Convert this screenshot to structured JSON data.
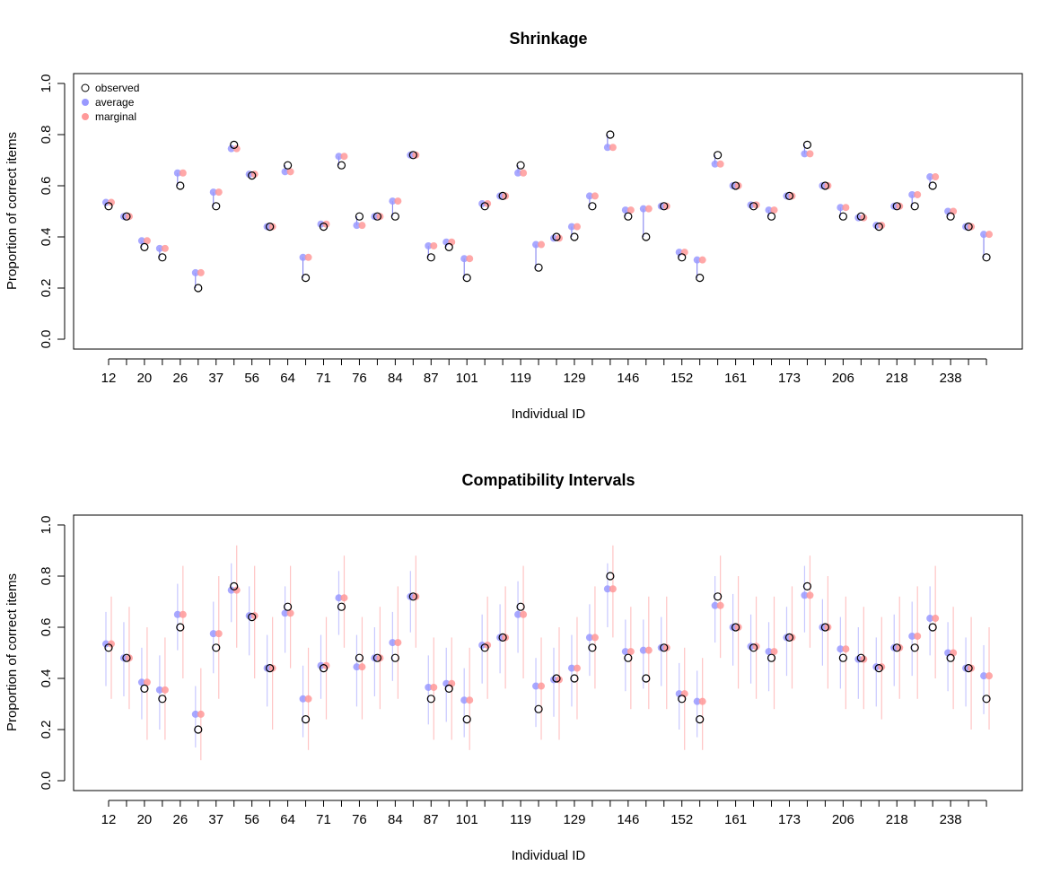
{
  "chart_data": [
    {
      "type": "scatter",
      "title": "Shrinkage",
      "xlabel": "Individual ID",
      "ylabel": "Proportion of correct items",
      "ylim": [
        0,
        1
      ],
      "yticks": [
        "0.0",
        "0.2",
        "0.4",
        "0.6",
        "0.8",
        "1.0"
      ],
      "show_intervals": false,
      "legend": {
        "placement": "top-left",
        "entries": [
          {
            "label": "observed",
            "marker": "open-circle",
            "color": "#000000"
          },
          {
            "label": "average",
            "marker": "filled-circle",
            "color": "#9999FF"
          },
          {
            "label": "marginal",
            "marker": "filled-circle",
            "color": "#FF9999"
          }
        ]
      }
    },
    {
      "type": "scatter",
      "title": "Compatibility Intervals",
      "xlabel": "Individual ID",
      "ylabel": "Proportion of correct items",
      "ylim": [
        0,
        1
      ],
      "yticks": [
        "0.0",
        "0.2",
        "0.4",
        "0.6",
        "0.8",
        "1.0"
      ],
      "show_intervals": true
    }
  ],
  "individuals": {
    "x_tick_labels": [
      "12",
      "",
      "20",
      "",
      "26",
      "",
      "37",
      "",
      "56",
      "",
      "64",
      "",
      "71",
      "",
      "76",
      "",
      "84",
      "",
      "87",
      "",
      "101",
      "",
      "",
      "119",
      "",
      "",
      "129",
      "",
      "",
      "146",
      "",
      "",
      "152",
      "",
      "",
      "161",
      "",
      "",
      "173",
      "",
      "",
      "206",
      "",
      "",
      "218",
      "",
      "",
      "238",
      "",
      ""
    ],
    "observed": [
      0.52,
      0.48,
      0.36,
      0.32,
      0.6,
      0.2,
      0.52,
      0.76,
      0.64,
      0.44,
      0.68,
      0.24,
      0.44,
      0.68,
      0.48,
      0.48,
      0.48,
      0.72,
      0.32,
      0.36,
      0.24,
      0.52,
      0.56,
      0.68,
      0.28,
      0.4,
      0.4,
      0.52,
      0.8,
      0.48,
      0.4,
      0.52,
      0.32,
      0.24,
      0.72,
      0.6,
      0.52,
      0.48,
      0.56,
      0.76,
      0.6,
      0.48,
      0.48,
      0.44,
      0.52,
      0.52,
      0.6,
      0.48,
      0.44,
      0.32
    ],
    "average": [
      0.535,
      0.48,
      0.385,
      0.355,
      0.65,
      0.26,
      0.575,
      0.745,
      0.645,
      0.44,
      0.655,
      0.32,
      0.45,
      0.715,
      0.445,
      0.48,
      0.54,
      0.72,
      0.365,
      0.38,
      0.315,
      0.53,
      0.56,
      0.65,
      0.37,
      0.395,
      0.44,
      0.56,
      0.75,
      0.505,
      0.51,
      0.52,
      0.34,
      0.31,
      0.685,
      0.6,
      0.525,
      0.505,
      0.56,
      0.725,
      0.6,
      0.515,
      0.475,
      0.445,
      0.52,
      0.565,
      0.635,
      0.5,
      0.44,
      0.41
    ],
    "marginal": [
      0.535,
      0.48,
      0.385,
      0.355,
      0.65,
      0.26,
      0.575,
      0.745,
      0.645,
      0.44,
      0.655,
      0.32,
      0.45,
      0.715,
      0.445,
      0.48,
      0.54,
      0.72,
      0.365,
      0.38,
      0.315,
      0.53,
      0.56,
      0.65,
      0.37,
      0.395,
      0.44,
      0.56,
      0.75,
      0.505,
      0.51,
      0.52,
      0.34,
      0.31,
      0.685,
      0.6,
      0.525,
      0.505,
      0.56,
      0.725,
      0.6,
      0.515,
      0.475,
      0.445,
      0.52,
      0.565,
      0.635,
      0.5,
      0.44,
      0.41
    ],
    "average_ci_low": [
      0.37,
      0.33,
      0.24,
      0.2,
      0.51,
      0.13,
      0.42,
      0.62,
      0.49,
      0.29,
      0.5,
      0.17,
      0.32,
      0.57,
      0.29,
      0.33,
      0.39,
      0.58,
      0.22,
      0.23,
      0.17,
      0.38,
      0.42,
      0.5,
      0.21,
      0.25,
      0.29,
      0.41,
      0.6,
      0.35,
      0.36,
      0.37,
      0.2,
      0.17,
      0.54,
      0.45,
      0.38,
      0.35,
      0.41,
      0.58,
      0.45,
      0.36,
      0.32,
      0.29,
      0.37,
      0.41,
      0.49,
      0.35,
      0.29,
      0.26
    ],
    "average_ci_high": [
      0.66,
      0.62,
      0.52,
      0.49,
      0.77,
      0.37,
      0.7,
      0.85,
      0.76,
      0.57,
      0.76,
      0.45,
      0.57,
      0.82,
      0.57,
      0.6,
      0.66,
      0.82,
      0.49,
      0.52,
      0.44,
      0.65,
      0.69,
      0.78,
      0.48,
      0.52,
      0.57,
      0.69,
      0.85,
      0.63,
      0.63,
      0.64,
      0.46,
      0.43,
      0.8,
      0.73,
      0.65,
      0.62,
      0.68,
      0.84,
      0.71,
      0.64,
      0.6,
      0.56,
      0.65,
      0.7,
      0.76,
      0.62,
      0.56,
      0.53
    ],
    "marginal_ci_low": [
      0.32,
      0.28,
      0.16,
      0.16,
      0.4,
      0.08,
      0.32,
      0.52,
      0.4,
      0.2,
      0.44,
      0.12,
      0.24,
      0.52,
      0.24,
      0.28,
      0.32,
      0.52,
      0.16,
      0.16,
      0.12,
      0.32,
      0.36,
      0.4,
      0.16,
      0.16,
      0.24,
      0.36,
      0.56,
      0.28,
      0.28,
      0.28,
      0.12,
      0.12,
      0.48,
      0.36,
      0.32,
      0.28,
      0.36,
      0.52,
      0.36,
      0.28,
      0.28,
      0.24,
      0.32,
      0.32,
      0.4,
      0.28,
      0.2,
      0.2
    ],
    "marginal_ci_high": [
      0.72,
      0.68,
      0.6,
      0.56,
      0.84,
      0.44,
      0.8,
      0.92,
      0.84,
      0.64,
      0.84,
      0.52,
      0.64,
      0.88,
      0.64,
      0.68,
      0.76,
      0.88,
      0.56,
      0.56,
      0.52,
      0.72,
      0.76,
      0.84,
      0.56,
      0.6,
      0.64,
      0.76,
      0.92,
      0.68,
      0.72,
      0.72,
      0.52,
      0.48,
      0.88,
      0.8,
      0.72,
      0.72,
      0.76,
      0.88,
      0.8,
      0.72,
      0.68,
      0.64,
      0.72,
      0.76,
      0.84,
      0.68,
      0.64,
      0.6
    ]
  },
  "colors": {
    "observed": "#000000",
    "average": "#9999FF",
    "marginal": "#FF9999",
    "average_interval": "#C8C8FF",
    "marginal_interval": "#FFC4C4",
    "shrink_segment": "#7777EE"
  }
}
